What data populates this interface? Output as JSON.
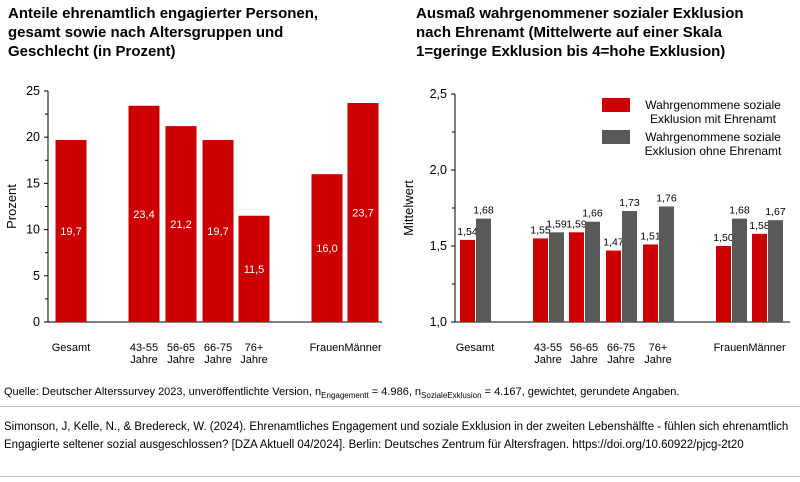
{
  "chart_data": [
    {
      "type": "bar",
      "title": "Anteile ehrenamtlich engagierter Personen,\ngesamt sowie nach Altersgruppen und\nGeschlecht (in Prozent)",
      "ylabel": "Prozent",
      "ylim": [
        0,
        25
      ],
      "yticks": [
        "0",
        "5",
        "10",
        "15",
        "20",
        "25"
      ],
      "categories": [
        "Gesamt",
        "43-55\nJahre",
        "56-65\nJahre",
        "66-75\nJahre",
        "76+\nJahre",
        "Frauen",
        "Männer"
      ],
      "values": [
        19.7,
        23.4,
        21.2,
        19.7,
        11.5,
        16.0,
        23.7
      ],
      "value_labels": [
        "19,7",
        "23,4",
        "21,2",
        "19,7",
        "11,5",
        "16,0",
        "23,7"
      ],
      "color": "#cc0000"
    },
    {
      "type": "bar",
      "title": "Ausmaß wahrgenommener sozialer Exklusion\nnach Ehrenamt (Mittelwerte auf einer Skala\n1=geringe Exklusion bis 4=hohe Exklusion)",
      "ylabel": "Mittelwert",
      "ylim": [
        1.0,
        2.5
      ],
      "yticks": [
        "1,0",
        "1,5",
        "2,0",
        "2,5"
      ],
      "categories": [
        "Gesamt",
        "43-55\nJahre",
        "56-65\nJahre",
        "66-75\nJahre",
        "76+\nJahre",
        "Frauen",
        "Männer"
      ],
      "series": [
        {
          "name": "Wahrgenommene soziale\nExklusion mit Ehrenamt",
          "values": [
            1.54,
            1.55,
            1.59,
            1.47,
            1.51,
            1.5,
            1.58
          ],
          "labels": [
            "1,54",
            "1,55",
            "1,59",
            "1,47",
            "1,51",
            "1,50",
            "1,58"
          ],
          "color": "#cc0000"
        },
        {
          "name": "Wahrgenommene soziale\nExklusion ohne Ehrenamt",
          "values": [
            1.68,
            1.59,
            1.66,
            1.73,
            1.76,
            1.68,
            1.67
          ],
          "labels": [
            "1,68",
            "1,59",
            "1,66",
            "1,73",
            "1,76",
            "1,68",
            "1,67"
          ],
          "color": "#595959"
        }
      ],
      "legend": "top-right"
    }
  ],
  "source": {
    "prefix": "Quelle: Deutscher Alterssurvey 2023, unveröffentlichte Version, n",
    "sub1": "Engagementt",
    "mid": " = 4.986, n",
    "sub2": "SozialeExklusion",
    "suffix": " = 4.167, gewichtet, gerundete Angaben."
  },
  "citation": "Simonson, J, Kelle, N., & Bredereck, W. (2024). Ehrenamtliches Engagement und soziale Exklusion in der zweiten Lebenshälfte - fühlen sich ehrenamtlich Engagierte seltener sozial ausgeschlossen? [DZA Aktuell 04/2024]. Berlin: Deutsches Zentrum für Altersfragen. https://doi.org/10.60922/pjcg-2t20"
}
